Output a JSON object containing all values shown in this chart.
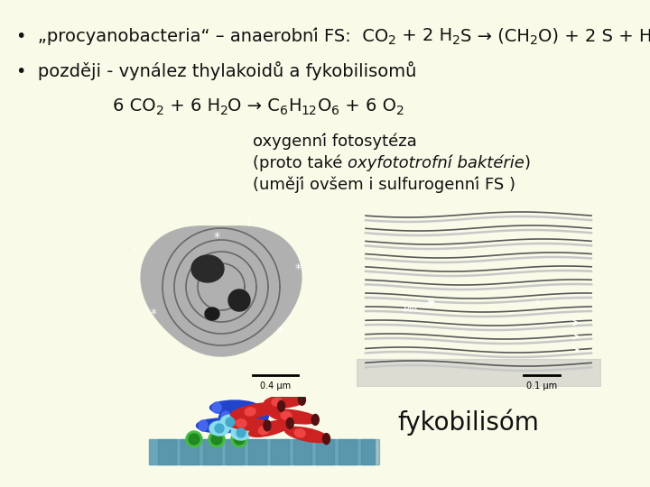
{
  "background_color": "#FAFAE8",
  "text_color": "#111111",
  "bullet1_text": "•  „procyanobacteria“ – anaerobní FS:  CO",
  "bullet2_text": "•  později - vynález thylakoidů a fykobilisomů",
  "eq_start": "6 CO",
  "eq_mid1": " + 6 H",
  "eq_mid2": "O → C",
  "eq_mid3": "H",
  "eq_mid4": "O",
  "eq_mid5": " + 6 O",
  "desc1": "oxygenní fotosytéza",
  "desc2_pre": "(proto také ",
  "desc2_italic": "oxyfototrofní baktérie",
  "desc2_post": ")",
  "desc3": "(umějí ovšem i sulfurogenní FS )",
  "label_fyko": "fykobilisóm",
  "scale1": "0.4 μm",
  "scale2": "0.1 μm",
  "fs_main": 14,
  "fs_sub": 10,
  "fs_desc": 13,
  "fs_fyko": 20
}
